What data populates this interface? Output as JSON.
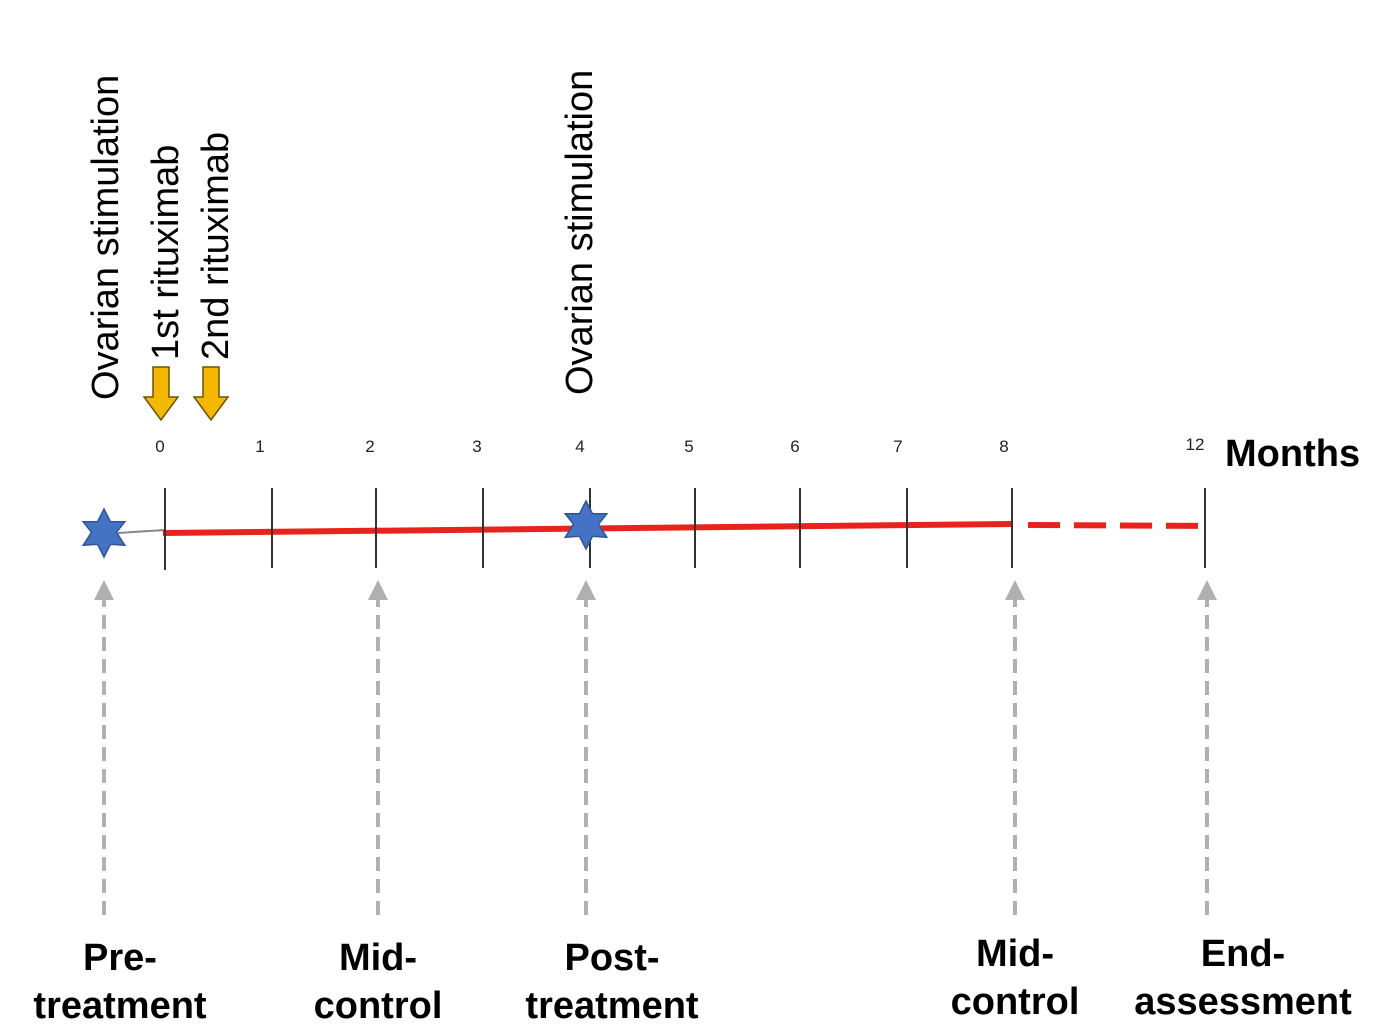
{
  "timeline": {
    "units_label": "Months",
    "ticks": [
      "0",
      "1",
      "2",
      "3",
      "4",
      "5",
      "6",
      "7",
      "8",
      "12"
    ],
    "events": [
      {
        "label": "Ovarian stimulation",
        "month": -0.5
      },
      {
        "label": "1st rituximab",
        "month": 0
      },
      {
        "label": "2nd rituximab",
        "month": 0.5
      },
      {
        "label": "Ovarian stimulation",
        "month": 4
      }
    ],
    "milestones": [
      {
        "line1": "Pre-",
        "line2": "treatment",
        "month": -0.5
      },
      {
        "line1": "Mid-",
        "line2": "control",
        "month": 2
      },
      {
        "line1": "Post-",
        "line2": "treatment",
        "month": 4
      },
      {
        "line1": "Mid-",
        "line2": "control",
        "month": 8
      },
      {
        "line1": "End-",
        "line2": "assessment",
        "month": 12
      }
    ],
    "solid_span_months": [
      0,
      8
    ],
    "dashed_span_months": [
      8,
      12
    ],
    "colors": {
      "timeline": "#e8231b",
      "star": "#4472c4",
      "event_arrow": "#f5b800",
      "milestone_arrow": "#b0b0b0"
    }
  }
}
